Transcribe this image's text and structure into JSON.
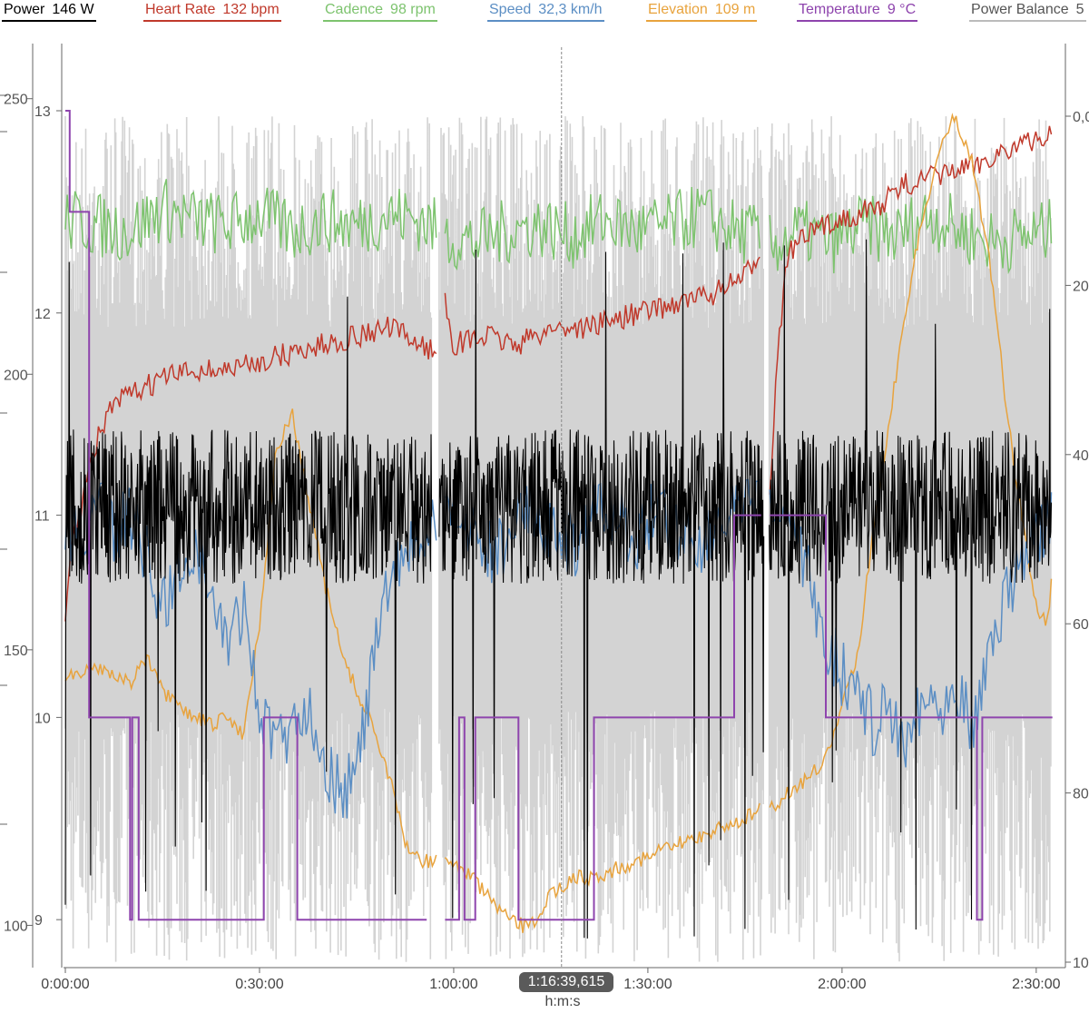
{
  "legend": [
    {
      "label": "Power",
      "value": "146 W",
      "color": "#000000"
    },
    {
      "label": "Heart Rate",
      "value": "132 bpm",
      "color": "#c0392b"
    },
    {
      "label": "Cadence",
      "value": "98 rpm",
      "color": "#7dc36e"
    },
    {
      "label": "Speed",
      "value": "32,3 km/h",
      "color": "#5b8ec4"
    },
    {
      "label": "Elevation",
      "value": "109 m",
      "color": "#e8a33d"
    },
    {
      "label": "Temperature",
      "value": "9 °C",
      "color": "#8e44ad"
    },
    {
      "label": "Power Balance",
      "value": "5",
      "color": "#bbbbbb"
    }
  ],
  "cursor": {
    "time_label": "1:16:39,615",
    "time_seconds": 4599.6
  },
  "chart_data": {
    "type": "line",
    "xlabel": "h:m:s",
    "xlim": [
      0,
      9220
    ],
    "x_ticks": [
      {
        "value": 0,
        "label": "0:00:00"
      },
      {
        "value": 1800,
        "label": "0:30:00"
      },
      {
        "value": 3600,
        "label": "1:00:00"
      },
      {
        "value": 5400,
        "label": "1:30:00"
      },
      {
        "value": 7200,
        "label": "2:00:00"
      },
      {
        "value": 9000,
        "label": "2:30:00"
      }
    ],
    "axes": {
      "outer_left": {
        "ylim": [
          92,
          260
        ],
        "ticks": [
          "100",
          "150",
          "200",
          "250"
        ],
        "tick_values": [
          100,
          150,
          200,
          250
        ]
      },
      "inner_left": {
        "ylim": [
          8.7,
          13.0
        ],
        "ticks": [
          "9",
          "10",
          "11",
          "12",
          "13"
        ],
        "tick_values": [
          9,
          10,
          11,
          12,
          13
        ]
      },
      "right": {
        "ylim": [
          0,
          100
        ],
        "reversed": true,
        "ticks": [
          "0,0",
          "20",
          "40",
          "60",
          "80",
          "100"
        ],
        "tick_values": [
          0,
          20,
          40,
          60,
          80,
          100
        ]
      }
    },
    "grid": false,
    "series": [
      {
        "name": "Power Balance",
        "axis": "right",
        "color": "#d3d3d3",
        "style": "dense-band",
        "band": [
          0,
          100
        ],
        "gaps": [
          [
            3400,
            3460
          ],
          [
            6480,
            6520
          ]
        ]
      },
      {
        "name": "Cadence",
        "axis": "outer_left",
        "color": "#7dc36e",
        "segments": [
          {
            "x": [
              0,
              300,
              600,
              900,
              1200,
              1500,
              1800,
              2100,
              2400,
              2700,
              3000,
              3300,
              3450
            ],
            "y": [
              228,
              227,
              226,
              230,
              228,
              227,
              229,
              226,
              228,
              227,
              229,
              228,
              226
            ]
          },
          {
            "x": [
              3520,
              3800,
              4100,
              4400,
              4700,
              5000,
              5300,
              5600,
              5900,
              6200,
              6450
            ],
            "y": [
              225,
              224,
              226,
              227,
              225,
              228,
              226,
              227,
              229,
              226,
              225
            ]
          },
          {
            "x": [
              6530,
              6800,
              7100,
              7400,
              7700,
              8000,
              8300,
              8600,
              8900,
              9150
            ],
            "y": [
              223,
              226,
              224,
              227,
              225,
              229,
              226,
              224,
              225,
              226
            ]
          }
        ]
      },
      {
        "name": "Heart Rate",
        "axis": "right",
        "color": "#c0392b",
        "segments": [
          {
            "x": [
              0,
              60,
              150,
              300,
              450,
              600,
              900,
              1200,
              1500,
              1800,
              2100,
              2400,
              2700,
              3000,
              3300,
              3450
            ],
            "y": [
              61,
              50,
              46,
              38,
              34,
              33,
              31,
              30,
              30,
              29,
              28,
              27,
              26,
              25,
              27,
              28
            ]
          },
          {
            "x": [
              3520,
              3600,
              3900,
              4200,
              4500,
              4800,
              5100,
              5400,
              5700,
              6000,
              6300,
              6450
            ],
            "y": [
              22,
              27,
              26,
              27,
              25,
              25,
              24,
              23,
              22,
              21,
              19,
              16
            ]
          },
          {
            "x": [
              6530,
              6600,
              6700,
              6900,
              7200,
              7500,
              7800,
              8100,
              8400,
              8700,
              9000,
              9150
            ],
            "y": [
              44,
              28,
              16,
              14,
              12,
              11,
              8,
              7,
              6,
              4,
              3,
              2
            ]
          }
        ]
      },
      {
        "name": "Elevation",
        "axis": "right",
        "color": "#e8a33d",
        "segments": [
          {
            "x": [
              0,
              150,
              300,
              450,
              600,
              750,
              900,
              1050,
              1200,
              1350,
              1500,
              1650,
              1800,
              1950,
              2100,
              2250,
              2400,
              2550,
              2700,
              2850,
              3000,
              3150,
              3300,
              3450
            ],
            "y": [
              66,
              66,
              65,
              66,
              67,
              64,
              68,
              70,
              71,
              72,
              71,
              73,
              60,
              40,
              35,
              45,
              55,
              63,
              68,
              72,
              78,
              86,
              88,
              88
            ]
          },
          {
            "x": [
              3520,
              3700,
              3900,
              4100,
              4300,
              4500,
              4700,
              4900,
              5100,
              5300,
              5500,
              5700,
              5900,
              6100,
              6300,
              6450
            ],
            "y": [
              88,
              89,
              92,
              95,
              96,
              92,
              90,
              90,
              89,
              88,
              87,
              86,
              85,
              84,
              83,
              82
            ]
          },
          {
            "x": [
              6530,
              6700,
              6900,
              7050,
              7200,
              7350,
              7500,
              7650,
              7800,
              7950,
              8100,
              8250,
              8400,
              8500,
              8600,
              8700,
              8800,
              8900,
              9000,
              9100,
              9150
            ],
            "y": [
              82,
              80,
              78,
              76,
              70,
              63,
              48,
              35,
              22,
              12,
              4,
              0,
              5,
              12,
              20,
              32,
              42,
              50,
              58,
              60,
              54
            ]
          }
        ]
      },
      {
        "name": "Speed",
        "axis": "right",
        "color": "#5b8ec4",
        "segments": [
          {
            "x": [
              0,
              150,
              300,
              450,
              600,
              750,
              900,
              1050,
              1200,
              1350,
              1500,
              1650,
              1800,
              1950,
              2100,
              2250,
              2400,
              2550,
              2700,
              2850,
              3000,
              3150,
              3300,
              3450
            ],
            "y": [
              48,
              50,
              46,
              49,
              47,
              52,
              58,
              55,
              50,
              57,
              62,
              58,
              70,
              75,
              72,
              69,
              76,
              80,
              78,
              65,
              55,
              52,
              50,
              49
            ]
          },
          {
            "x": [
              3520,
              3700,
              3900,
              4100,
              4300,
              4500,
              4700,
              4900,
              5100,
              5300,
              5500,
              5700,
              5900,
              6100,
              6300,
              6450
            ],
            "y": [
              48,
              47,
              52,
              50,
              46,
              49,
              51,
              47,
              48,
              50,
              46,
              49,
              50,
              48,
              47,
              46
            ]
          },
          {
            "x": [
              6530,
              6700,
              6900,
              7050,
              7200,
              7350,
              7500,
              7650,
              7800,
              7950,
              8100,
              8250,
              8400,
              8550,
              8700,
              8850,
              9000,
              9150
            ],
            "y": [
              46,
              48,
              55,
              62,
              66,
              68,
              72,
              70,
              74,
              68,
              70,
              66,
              72,
              64,
              58,
              52,
              50,
              48
            ]
          }
        ]
      },
      {
        "name": "Power",
        "axis": "outer_left",
        "color": "#000000",
        "style": "dense-band",
        "center": 176,
        "spread": 14,
        "gaps": [
          [
            3400,
            3460
          ],
          [
            6480,
            6520
          ]
        ]
      },
      {
        "name": "Temperature",
        "axis": "inner_left",
        "color": "#8e44ad",
        "step": true,
        "segments": [
          {
            "x": [
              0,
              30,
              40,
              220,
              230,
              560,
              600,
              620,
              680,
              720,
              1800,
              1840,
              1900,
              2150,
              2200,
              2600,
              3350
            ],
            "y": [
              13,
              13,
              12.5,
              10,
              10,
              10,
              9,
              10,
              9,
              9,
              9,
              10,
              10,
              9,
              9,
              9,
              9
            ]
          },
          {
            "x": [
              3520,
              3650,
              3700,
              3800,
              4200,
              4600,
              4800,
              4900,
              5000,
              5200,
              5600,
              6100,
              6200,
              6300,
              6400,
              6450
            ],
            "y": [
              9,
              10,
              9,
              10,
              9,
              9,
              9,
              10,
              10,
              10,
              10,
              10,
              11,
              11,
              11,
              11
            ]
          },
          {
            "x": [
              6530,
              6600,
              6800,
              7000,
              7050,
              7200,
              7300,
              7600,
              8200,
              8450,
              8500,
              8600,
              9150
            ],
            "y": [
              11,
              11,
              11,
              11,
              10,
              10,
              10,
              10,
              10,
              9,
              10,
              10,
              10
            ]
          }
        ]
      }
    ]
  }
}
